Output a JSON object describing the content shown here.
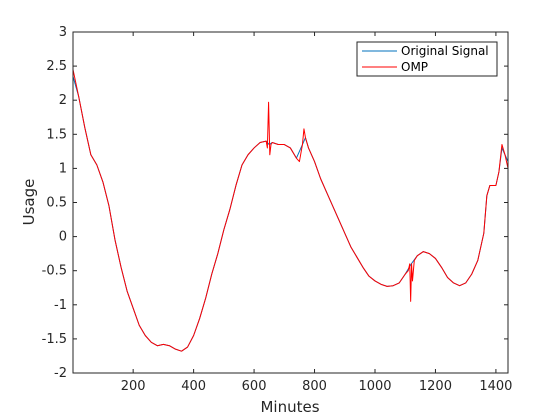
{
  "chart_data": {
    "type": "line",
    "title": "",
    "xlabel": "Minutes",
    "ylabel": "Usage",
    "xlim": [
      1,
      1440
    ],
    "ylim": [
      -2,
      3
    ],
    "xticks": [
      200,
      400,
      600,
      800,
      1000,
      1200,
      1400
    ],
    "yticks": [
      -2,
      -1.5,
      -1,
      -0.5,
      0,
      0.5,
      1,
      1.5,
      2,
      2.5,
      3
    ],
    "grid": false,
    "legend_position": "top-right",
    "series": [
      {
        "name": "Original Signal",
        "color": "#0072BD",
        "x": [
          1,
          20,
          40,
          60,
          80,
          100,
          120,
          140,
          160,
          180,
          200,
          220,
          240,
          260,
          280,
          300,
          320,
          340,
          360,
          380,
          400,
          420,
          440,
          460,
          480,
          500,
          520,
          540,
          560,
          580,
          600,
          620,
          640,
          650,
          660,
          680,
          700,
          720,
          740,
          760,
          770,
          780,
          800,
          820,
          840,
          860,
          880,
          900,
          920,
          940,
          960,
          980,
          1000,
          1020,
          1040,
          1060,
          1080,
          1100,
          1120,
          1140,
          1160,
          1180,
          1200,
          1220,
          1240,
          1260,
          1280,
          1300,
          1320,
          1340,
          1360,
          1370,
          1380,
          1400,
          1410,
          1420,
          1430,
          1440
        ],
        "y": [
          2.35,
          2.05,
          1.6,
          1.2,
          1.05,
          0.8,
          0.45,
          -0.05,
          -0.45,
          -0.8,
          -1.05,
          -1.3,
          -1.45,
          -1.55,
          -1.6,
          -1.58,
          -1.6,
          -1.65,
          -1.68,
          -1.62,
          -1.45,
          -1.2,
          -0.9,
          -0.55,
          -0.25,
          0.1,
          0.4,
          0.75,
          1.05,
          1.2,
          1.3,
          1.38,
          1.4,
          1.35,
          1.38,
          1.35,
          1.35,
          1.3,
          1.15,
          1.35,
          1.45,
          1.3,
          1.1,
          0.85,
          0.65,
          0.45,
          0.25,
          0.05,
          -0.15,
          -0.3,
          -0.45,
          -0.58,
          -0.65,
          -0.7,
          -0.73,
          -0.72,
          -0.68,
          -0.55,
          -0.4,
          -0.28,
          -0.22,
          -0.25,
          -0.32,
          -0.45,
          -0.6,
          -0.68,
          -0.72,
          -0.68,
          -0.55,
          -0.35,
          0.05,
          0.6,
          0.75,
          0.75,
          0.95,
          1.3,
          1.2,
          1.1
        ]
      },
      {
        "name": "OMP",
        "color": "#FF0000",
        "x": [
          1,
          20,
          40,
          60,
          80,
          100,
          120,
          140,
          160,
          180,
          200,
          220,
          240,
          260,
          280,
          300,
          320,
          340,
          360,
          380,
          400,
          420,
          440,
          460,
          480,
          500,
          520,
          540,
          560,
          580,
          600,
          620,
          640,
          644,
          648,
          652,
          656,
          660,
          680,
          700,
          720,
          740,
          750,
          760,
          765,
          770,
          780,
          800,
          820,
          840,
          860,
          880,
          900,
          920,
          940,
          960,
          980,
          1000,
          1020,
          1040,
          1060,
          1080,
          1100,
          1110,
          1115,
          1118,
          1121,
          1124,
          1130,
          1140,
          1160,
          1180,
          1200,
          1220,
          1240,
          1260,
          1280,
          1300,
          1320,
          1340,
          1360,
          1370,
          1380,
          1400,
          1410,
          1420,
          1430,
          1440
        ],
        "y": [
          2.45,
          2.05,
          1.6,
          1.2,
          1.05,
          0.8,
          0.45,
          -0.05,
          -0.45,
          -0.8,
          -1.05,
          -1.3,
          -1.45,
          -1.55,
          -1.6,
          -1.58,
          -1.6,
          -1.65,
          -1.68,
          -1.62,
          -1.45,
          -1.2,
          -0.9,
          -0.55,
          -0.25,
          0.1,
          0.4,
          0.75,
          1.05,
          1.2,
          1.3,
          1.38,
          1.4,
          1.3,
          1.97,
          1.2,
          1.35,
          1.38,
          1.35,
          1.35,
          1.3,
          1.15,
          1.1,
          1.35,
          1.58,
          1.45,
          1.3,
          1.1,
          0.85,
          0.65,
          0.45,
          0.25,
          0.05,
          -0.15,
          -0.3,
          -0.45,
          -0.58,
          -0.65,
          -0.7,
          -0.73,
          -0.72,
          -0.68,
          -0.55,
          -0.5,
          -0.4,
          -0.95,
          -0.4,
          -0.65,
          -0.35,
          -0.28,
          -0.22,
          -0.25,
          -0.32,
          -0.45,
          -0.6,
          -0.68,
          -0.72,
          -0.68,
          -0.55,
          -0.35,
          0.05,
          0.6,
          0.75,
          0.75,
          0.95,
          1.35,
          1.2,
          1.0
        ]
      }
    ]
  }
}
